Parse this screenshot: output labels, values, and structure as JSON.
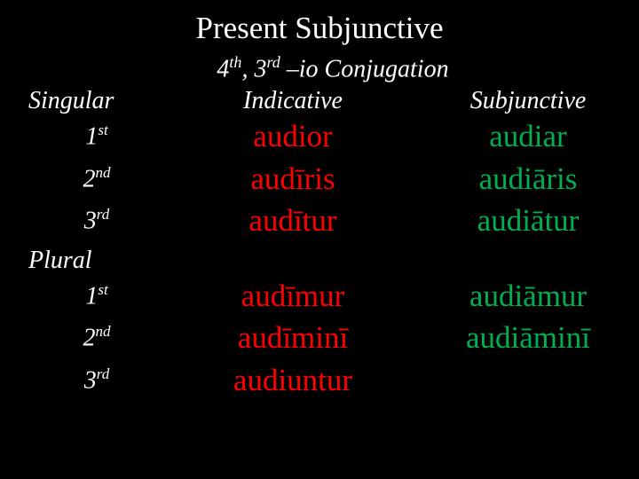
{
  "title": "Present Subjunctive",
  "subtitle_parts": {
    "p1": "4",
    "sup1": "th",
    "p2": ", 3",
    "sup2": "rd",
    "p3": " –io Conjugation"
  },
  "columns": {
    "left": "Singular",
    "indicative": "Indicative",
    "subjunctive": "Subjunctive"
  },
  "rows": {
    "r1": {
      "num": "1",
      "ord": "st"
    },
    "r2": {
      "num": "2",
      "ord": "nd"
    },
    "r3": {
      "num": "3",
      "ord": "rd"
    },
    "plural": "Plural",
    "r4": {
      "num": "1",
      "ord": "st"
    },
    "r5": {
      "num": "2",
      "ord": "nd"
    },
    "r6": {
      "num": "3",
      "ord": "rd"
    }
  },
  "indicative": {
    "s1": "audior",
    "s2": "audīris",
    "s3": "audītur",
    "p1": "audīmur",
    "p2": "audīminī",
    "p3": "audiuntur"
  },
  "subjunctive": {
    "s1": "audiar",
    "s2": "audiāris",
    "s3": "audiātur",
    "p1": "audiāmur",
    "p2": "audiāminī",
    "p3": ""
  },
  "colors": {
    "bg": "#000000",
    "text": "#ffffff",
    "indicative": "#ff0000",
    "subjunctive": "#00b050"
  }
}
